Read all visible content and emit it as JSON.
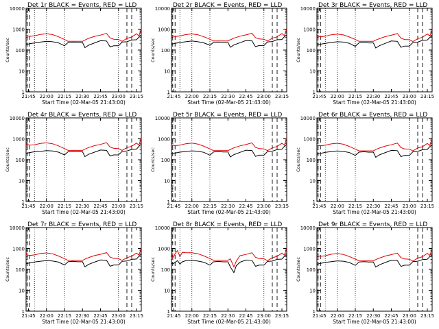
{
  "colors": {
    "events": "#000000",
    "lld": "#e00000",
    "axis": "#000000",
    "background": "#ffffff"
  },
  "chart_data": [
    {
      "type": "line",
      "title": "Det 1r BLACK = Events, RED = LLD",
      "xlabel": "Start Time (02-Mar-05 21:43:00)",
      "ylabel": "Counts/sec",
      "x_ticks": [
        "21:45",
        "22:00",
        "22:15",
        "22:30",
        "22:45",
        "23:00",
        "23:15"
      ],
      "y_ticks": [
        "1",
        "10",
        "100",
        "1000",
        "10000"
      ],
      "yscale": "log",
      "ylim": [
        1,
        10000
      ],
      "x": [
        "21:43",
        "21:46",
        "21:50",
        "21:55",
        "22:00",
        "22:05",
        "22:10",
        "22:15",
        "22:18",
        "22:22",
        "22:26",
        "22:30",
        "22:32",
        "22:35",
        "22:40",
        "22:45",
        "22:50",
        "22:53",
        "22:56",
        "23:00",
        "23:03",
        "23:07",
        "23:11",
        "23:15",
        "23:17",
        "23:19"
      ],
      "series": [
        {
          "name": "BLACK = Events",
          "values": [
            180,
            200,
            220,
            240,
            260,
            250,
            220,
            160,
            230,
            240,
            230,
            230,
            130,
            170,
            220,
            280,
            270,
            140,
            160,
            160,
            240,
            250,
            300,
            310,
            420,
            500
          ]
        },
        {
          "name": "RED = LLD",
          "values": [
            500,
            450,
            480,
            560,
            600,
            550,
            430,
            320,
            260,
            260,
            260,
            260,
            300,
            360,
            450,
            520,
            620,
            380,
            330,
            320,
            260,
            360,
            420,
            600,
            480,
            1000
          ]
        }
      ]
    },
    {
      "type": "line",
      "title": "Det 2r BLACK = Events, RED = LLD",
      "xlabel": "Start Time (02-Mar-05 21:43:00)",
      "ylabel": "Counts/sec",
      "x_ticks": [
        "21:45",
        "22:00",
        "22:15",
        "22:30",
        "22:45",
        "23:00",
        "23:15"
      ],
      "y_ticks": [
        "1",
        "10",
        "100",
        "1000",
        "10000"
      ],
      "yscale": "log",
      "ylim": [
        1,
        10000
      ],
      "x": [
        "21:43",
        "21:46",
        "21:50",
        "21:55",
        "22:00",
        "22:05",
        "22:10",
        "22:15",
        "22:18",
        "22:22",
        "22:26",
        "22:30",
        "22:32",
        "22:35",
        "22:40",
        "22:45",
        "22:50",
        "22:53",
        "22:56",
        "23:00",
        "23:03",
        "23:07",
        "23:11",
        "23:15",
        "23:17",
        "23:19"
      ],
      "series": [
        {
          "name": "BLACK = Events",
          "values": [
            190,
            210,
            230,
            250,
            270,
            250,
            220,
            170,
            235,
            240,
            235,
            235,
            135,
            175,
            225,
            285,
            275,
            145,
            165,
            165,
            245,
            255,
            310,
            320,
            430,
            520
          ]
        },
        {
          "name": "RED = LLD",
          "values": [
            480,
            440,
            470,
            550,
            590,
            540,
            430,
            330,
            270,
            270,
            270,
            270,
            310,
            370,
            460,
            530,
            630,
            390,
            340,
            330,
            270,
            370,
            430,
            610,
            490,
            950
          ]
        }
      ]
    },
    {
      "type": "line",
      "title": "Det 3r BLACK = Events, RED = LLD",
      "xlabel": "Start Time (02-Mar-05 21:43:00)",
      "ylabel": "Counts/sec",
      "x_ticks": [
        "21:45",
        "22:00",
        "22:15",
        "22:30",
        "22:45",
        "23:00",
        "23:15"
      ],
      "y_ticks": [
        "1",
        "10",
        "100",
        "1000",
        "10000"
      ],
      "yscale": "log",
      "ylim": [
        1,
        10000
      ],
      "x": [
        "21:43",
        "21:46",
        "21:50",
        "21:55",
        "22:00",
        "22:05",
        "22:10",
        "22:15",
        "22:18",
        "22:22",
        "22:26",
        "22:30",
        "22:32",
        "22:35",
        "22:40",
        "22:45",
        "22:50",
        "22:53",
        "22:56",
        "23:00",
        "23:03",
        "23:07",
        "23:11",
        "23:15",
        "23:17",
        "23:19"
      ],
      "series": [
        {
          "name": "BLACK = Events",
          "values": [
            170,
            190,
            210,
            230,
            250,
            240,
            210,
            150,
            220,
            230,
            220,
            220,
            125,
            160,
            210,
            270,
            260,
            135,
            155,
            155,
            230,
            240,
            290,
            300,
            400,
            480
          ]
        },
        {
          "name": "RED = LLD",
          "values": [
            460,
            430,
            460,
            540,
            580,
            530,
            420,
            320,
            260,
            260,
            260,
            260,
            300,
            350,
            440,
            510,
            610,
            370,
            320,
            310,
            255,
            350,
            410,
            590,
            470,
            900
          ]
        }
      ]
    },
    {
      "type": "line",
      "title": "Det 4r BLACK = Events, RED = LLD",
      "xlabel": "Start Time (02-Mar-05 21:43:00)",
      "ylabel": "Counts/sec",
      "x_ticks": [
        "21:45",
        "22:00",
        "22:15",
        "22:30",
        "22:45",
        "23:00",
        "23:15"
      ],
      "y_ticks": [
        "1",
        "10",
        "100",
        "1000",
        "10000"
      ],
      "yscale": "log",
      "ylim": [
        1,
        10000
      ],
      "x": [
        "21:43",
        "21:46",
        "21:50",
        "21:55",
        "22:00",
        "22:05",
        "22:10",
        "22:15",
        "22:18",
        "22:22",
        "22:26",
        "22:30",
        "22:32",
        "22:35",
        "22:40",
        "22:45",
        "22:50",
        "22:53",
        "22:56",
        "23:00",
        "23:03",
        "23:07",
        "23:11",
        "23:15",
        "23:17",
        "23:19"
      ],
      "series": [
        {
          "name": "BLACK = Events",
          "values": [
            200,
            220,
            240,
            250,
            270,
            260,
            230,
            170,
            240,
            250,
            240,
            240,
            140,
            180,
            230,
            290,
            280,
            150,
            170,
            170,
            250,
            260,
            310,
            320,
            440,
            560
          ]
        },
        {
          "name": "RED = LLD",
          "values": [
            560,
            500,
            520,
            600,
            640,
            580,
            460,
            340,
            280,
            280,
            280,
            280,
            320,
            380,
            470,
            540,
            650,
            400,
            350,
            340,
            280,
            380,
            440,
            620,
            500,
            1100
          ]
        }
      ]
    },
    {
      "type": "line",
      "title": "Det 5r BLACK = Events, RED = LLD",
      "xlabel": "Start Time (02-Mar-05 21:43:00)",
      "ylabel": "Counts/sec",
      "x_ticks": [
        "21:45",
        "22:00",
        "22:15",
        "22:30",
        "22:45",
        "23:00",
        "23:15"
      ],
      "y_ticks": [
        "1",
        "10",
        "100",
        "1000",
        "10000"
      ],
      "yscale": "log",
      "ylim": [
        1,
        10000
      ],
      "x": [
        "21:43",
        "21:46",
        "21:50",
        "21:55",
        "22:00",
        "22:05",
        "22:10",
        "22:15",
        "22:18",
        "22:22",
        "22:26",
        "22:30",
        "22:32",
        "22:35",
        "22:40",
        "22:45",
        "22:50",
        "22:53",
        "22:56",
        "23:00",
        "23:03",
        "23:07",
        "23:11",
        "23:15",
        "23:17",
        "23:19"
      ],
      "series": [
        {
          "name": "BLACK = Events",
          "values": [
            190,
            210,
            230,
            250,
            265,
            255,
            225,
            165,
            235,
            245,
            235,
            235,
            135,
            175,
            225,
            285,
            275,
            145,
            165,
            165,
            245,
            255,
            305,
            315,
            430,
            540
          ]
        },
        {
          "name": "RED = LLD",
          "values": [
            520,
            470,
            500,
            580,
            620,
            560,
            440,
            330,
            270,
            270,
            270,
            270,
            310,
            370,
            460,
            530,
            640,
            390,
            340,
            330,
            270,
            370,
            430,
            610,
            490,
            1050
          ]
        }
      ]
    },
    {
      "type": "line",
      "title": "Det 6r BLACK = Events, RED = LLD",
      "xlabel": "Start Time (02-Mar-05 21:43:00)",
      "ylabel": "Counts/sec",
      "x_ticks": [
        "21:45",
        "22:00",
        "22:15",
        "22:30",
        "22:45",
        "23:00",
        "23:15"
      ],
      "y_ticks": [
        "1",
        "10",
        "100",
        "1000",
        "10000"
      ],
      "yscale": "log",
      "ylim": [
        1,
        10000
      ],
      "x": [
        "21:43",
        "21:46",
        "21:50",
        "21:55",
        "22:00",
        "22:05",
        "22:10",
        "22:15",
        "22:18",
        "22:22",
        "22:26",
        "22:30",
        "22:32",
        "22:35",
        "22:40",
        "22:45",
        "22:50",
        "22:53",
        "22:56",
        "23:00",
        "23:03",
        "23:07",
        "23:11",
        "23:15",
        "23:17",
        "23:19"
      ],
      "series": [
        {
          "name": "BLACK = Events",
          "values": [
            180,
            200,
            225,
            245,
            260,
            250,
            220,
            160,
            230,
            240,
            230,
            230,
            130,
            170,
            220,
            280,
            270,
            140,
            160,
            160,
            240,
            250,
            300,
            310,
            420,
            520
          ]
        },
        {
          "name": "RED = LLD",
          "values": [
            500,
            460,
            490,
            570,
            610,
            550,
            430,
            320,
            265,
            265,
            265,
            265,
            305,
            360,
            450,
            520,
            625,
            380,
            330,
            320,
            265,
            360,
            420,
            600,
            480,
            1000
          ]
        }
      ]
    },
    {
      "type": "line",
      "title": "Det 7r BLACK = Events, RED = LLD",
      "xlabel": "Start Time (02-Mar-05 21:43:00)",
      "ylabel": "Counts/sec",
      "x_ticks": [
        "21:45",
        "22:00",
        "22:15",
        "22:30",
        "22:45",
        "23:00",
        "23:15"
      ],
      "y_ticks": [
        "1",
        "10",
        "100",
        "1000",
        "10000"
      ],
      "yscale": "log",
      "ylim": [
        1,
        10000
      ],
      "x": [
        "21:43",
        "21:46",
        "21:50",
        "21:55",
        "22:00",
        "22:05",
        "22:10",
        "22:15",
        "22:18",
        "22:22",
        "22:26",
        "22:30",
        "22:32",
        "22:35",
        "22:40",
        "22:45",
        "22:50",
        "22:53",
        "22:56",
        "23:00",
        "23:03",
        "23:07",
        "23:11",
        "23:15",
        "23:17",
        "23:19"
      ],
      "series": [
        {
          "name": "BLACK = Events",
          "values": [
            185,
            205,
            225,
            245,
            262,
            252,
            222,
            162,
            232,
            242,
            232,
            232,
            132,
            172,
            222,
            282,
            272,
            142,
            162,
            162,
            242,
            252,
            302,
            312,
            425,
            530
          ]
        },
        {
          "name": "RED = LLD",
          "values": [
            510,
            460,
            490,
            570,
            610,
            555,
            435,
            325,
            268,
            268,
            268,
            268,
            308,
            365,
            455,
            525,
            630,
            385,
            335,
            325,
            268,
            365,
            425,
            605,
            485,
            1020
          ]
        }
      ]
    },
    {
      "type": "line",
      "title": "Det 8r BLACK = Events, RED = LLD",
      "xlabel": "Start Time (02-Mar-05 21:43:00)",
      "ylabel": "Counts/sec",
      "x_ticks": [
        "21:45",
        "22:00",
        "22:15",
        "22:30",
        "22:45",
        "23:00",
        "23:15"
      ],
      "y_ticks": [
        "1",
        "10",
        "100",
        "1000",
        "10000"
      ],
      "yscale": "log",
      "ylim": [
        1,
        10000
      ],
      "x": [
        "21:43",
        "21:44",
        "21:46",
        "21:48",
        "21:50",
        "21:52",
        "21:55",
        "22:00",
        "22:05",
        "22:10",
        "22:15",
        "22:18",
        "22:22",
        "22:26",
        "22:30",
        "22:32",
        "22:35",
        "22:37",
        "22:40",
        "22:45",
        "22:50",
        "22:53",
        "22:56",
        "23:00",
        "23:03",
        "23:07",
        "23:11",
        "23:15",
        "23:17",
        "23:19"
      ],
      "series": [
        {
          "name": "BLACK = Events",
          "values": [
            200,
            180,
            220,
            260,
            180,
            230,
            260,
            270,
            250,
            220,
            160,
            230,
            240,
            230,
            230,
            130,
            70,
            150,
            220,
            280,
            270,
            140,
            160,
            160,
            240,
            250,
            300,
            310,
            420,
            500
          ]
        },
        {
          "name": "RED = LLD",
          "values": [
            600,
            350,
            560,
            800,
            400,
            650,
            620,
            620,
            560,
            440,
            330,
            270,
            270,
            270,
            270,
            320,
            130,
            250,
            450,
            520,
            620,
            380,
            330,
            320,
            260,
            360,
            420,
            600,
            480,
            1000
          ]
        }
      ]
    },
    {
      "type": "line",
      "title": "Det 9r BLACK = Events, RED = LLD",
      "xlabel": "Start Time (02-Mar-05 21:43:00)",
      "ylabel": "Counts/sec",
      "x_ticks": [
        "21:45",
        "22:00",
        "22:15",
        "22:30",
        "22:45",
        "23:00",
        "23:15"
      ],
      "y_ticks": [
        "1",
        "10",
        "100",
        "1000",
        "10000"
      ],
      "yscale": "log",
      "ylim": [
        1,
        10000
      ],
      "x": [
        "21:43",
        "21:46",
        "21:50",
        "21:55",
        "22:00",
        "22:05",
        "22:10",
        "22:15",
        "22:18",
        "22:22",
        "22:26",
        "22:30",
        "22:32",
        "22:35",
        "22:40",
        "22:45",
        "22:50",
        "22:53",
        "22:56",
        "23:00",
        "23:03",
        "23:07",
        "23:11",
        "23:15",
        "23:17",
        "23:19"
      ],
      "series": [
        {
          "name": "BLACK = Events",
          "values": [
            175,
            195,
            215,
            235,
            255,
            245,
            215,
            155,
            225,
            235,
            225,
            225,
            128,
            165,
            215,
            275,
            265,
            138,
            158,
            158,
            235,
            245,
            295,
            305,
            410,
            490
          ]
        },
        {
          "name": "RED = LLD",
          "values": [
            440,
            420,
            450,
            530,
            570,
            520,
            410,
            310,
            255,
            255,
            255,
            255,
            295,
            345,
            435,
            505,
            600,
            365,
            315,
            305,
            250,
            345,
            405,
            585,
            465,
            900
          ]
        }
      ]
    }
  ]
}
